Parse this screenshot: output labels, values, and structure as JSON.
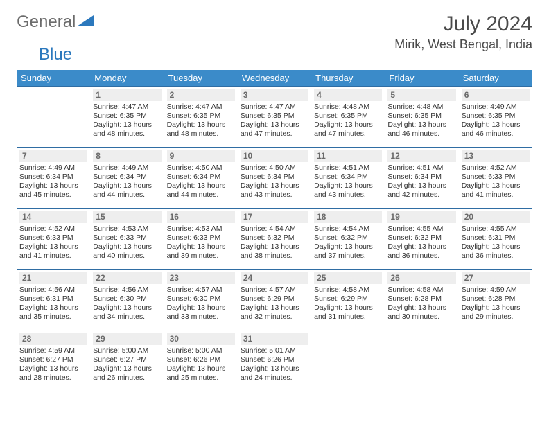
{
  "brand": {
    "part1": "General",
    "part2": "Blue"
  },
  "title": "July 2024",
  "location": "Mirik, West Bengal, India",
  "colors": {
    "header_bg": "#3b8bc9",
    "header_text": "#ffffff",
    "cell_border": "#2f6da3",
    "daynum_bg": "#eeeeee",
    "daynum_text": "#6a6a6a",
    "body_text": "#333333",
    "brand_gray": "#6b6b6b",
    "brand_blue": "#2b78bd"
  },
  "typography": {
    "body_fontsize": 10.5,
    "header_fontsize": 13,
    "title_fontsize": 30,
    "location_fontsize": 18
  },
  "weekdays": [
    "Sunday",
    "Monday",
    "Tuesday",
    "Wednesday",
    "Thursday",
    "Friday",
    "Saturday"
  ],
  "start_weekday": 1,
  "days": [
    {
      "n": 1,
      "sunrise": "4:47 AM",
      "sunset": "6:35 PM",
      "daylight": "13 hours and 48 minutes."
    },
    {
      "n": 2,
      "sunrise": "4:47 AM",
      "sunset": "6:35 PM",
      "daylight": "13 hours and 48 minutes."
    },
    {
      "n": 3,
      "sunrise": "4:47 AM",
      "sunset": "6:35 PM",
      "daylight": "13 hours and 47 minutes."
    },
    {
      "n": 4,
      "sunrise": "4:48 AM",
      "sunset": "6:35 PM",
      "daylight": "13 hours and 47 minutes."
    },
    {
      "n": 5,
      "sunrise": "4:48 AM",
      "sunset": "6:35 PM",
      "daylight": "13 hours and 46 minutes."
    },
    {
      "n": 6,
      "sunrise": "4:49 AM",
      "sunset": "6:35 PM",
      "daylight": "13 hours and 46 minutes."
    },
    {
      "n": 7,
      "sunrise": "4:49 AM",
      "sunset": "6:34 PM",
      "daylight": "13 hours and 45 minutes."
    },
    {
      "n": 8,
      "sunrise": "4:49 AM",
      "sunset": "6:34 PM",
      "daylight": "13 hours and 44 minutes."
    },
    {
      "n": 9,
      "sunrise": "4:50 AM",
      "sunset": "6:34 PM",
      "daylight": "13 hours and 44 minutes."
    },
    {
      "n": 10,
      "sunrise": "4:50 AM",
      "sunset": "6:34 PM",
      "daylight": "13 hours and 43 minutes."
    },
    {
      "n": 11,
      "sunrise": "4:51 AM",
      "sunset": "6:34 PM",
      "daylight": "13 hours and 43 minutes."
    },
    {
      "n": 12,
      "sunrise": "4:51 AM",
      "sunset": "6:34 PM",
      "daylight": "13 hours and 42 minutes."
    },
    {
      "n": 13,
      "sunrise": "4:52 AM",
      "sunset": "6:33 PM",
      "daylight": "13 hours and 41 minutes."
    },
    {
      "n": 14,
      "sunrise": "4:52 AM",
      "sunset": "6:33 PM",
      "daylight": "13 hours and 41 minutes."
    },
    {
      "n": 15,
      "sunrise": "4:53 AM",
      "sunset": "6:33 PM",
      "daylight": "13 hours and 40 minutes."
    },
    {
      "n": 16,
      "sunrise": "4:53 AM",
      "sunset": "6:33 PM",
      "daylight": "13 hours and 39 minutes."
    },
    {
      "n": 17,
      "sunrise": "4:54 AM",
      "sunset": "6:32 PM",
      "daylight": "13 hours and 38 minutes."
    },
    {
      "n": 18,
      "sunrise": "4:54 AM",
      "sunset": "6:32 PM",
      "daylight": "13 hours and 37 minutes."
    },
    {
      "n": 19,
      "sunrise": "4:55 AM",
      "sunset": "6:32 PM",
      "daylight": "13 hours and 36 minutes."
    },
    {
      "n": 20,
      "sunrise": "4:55 AM",
      "sunset": "6:31 PM",
      "daylight": "13 hours and 36 minutes."
    },
    {
      "n": 21,
      "sunrise": "4:56 AM",
      "sunset": "6:31 PM",
      "daylight": "13 hours and 35 minutes."
    },
    {
      "n": 22,
      "sunrise": "4:56 AM",
      "sunset": "6:30 PM",
      "daylight": "13 hours and 34 minutes."
    },
    {
      "n": 23,
      "sunrise": "4:57 AM",
      "sunset": "6:30 PM",
      "daylight": "13 hours and 33 minutes."
    },
    {
      "n": 24,
      "sunrise": "4:57 AM",
      "sunset": "6:29 PM",
      "daylight": "13 hours and 32 minutes."
    },
    {
      "n": 25,
      "sunrise": "4:58 AM",
      "sunset": "6:29 PM",
      "daylight": "13 hours and 31 minutes."
    },
    {
      "n": 26,
      "sunrise": "4:58 AM",
      "sunset": "6:28 PM",
      "daylight": "13 hours and 30 minutes."
    },
    {
      "n": 27,
      "sunrise": "4:59 AM",
      "sunset": "6:28 PM",
      "daylight": "13 hours and 29 minutes."
    },
    {
      "n": 28,
      "sunrise": "4:59 AM",
      "sunset": "6:27 PM",
      "daylight": "13 hours and 28 minutes."
    },
    {
      "n": 29,
      "sunrise": "5:00 AM",
      "sunset": "6:27 PM",
      "daylight": "13 hours and 26 minutes."
    },
    {
      "n": 30,
      "sunrise": "5:00 AM",
      "sunset": "6:26 PM",
      "daylight": "13 hours and 25 minutes."
    },
    {
      "n": 31,
      "sunrise": "5:01 AM",
      "sunset": "6:26 PM",
      "daylight": "13 hours and 24 minutes."
    }
  ],
  "labels": {
    "sunrise": "Sunrise:",
    "sunset": "Sunset:",
    "daylight": "Daylight:"
  }
}
